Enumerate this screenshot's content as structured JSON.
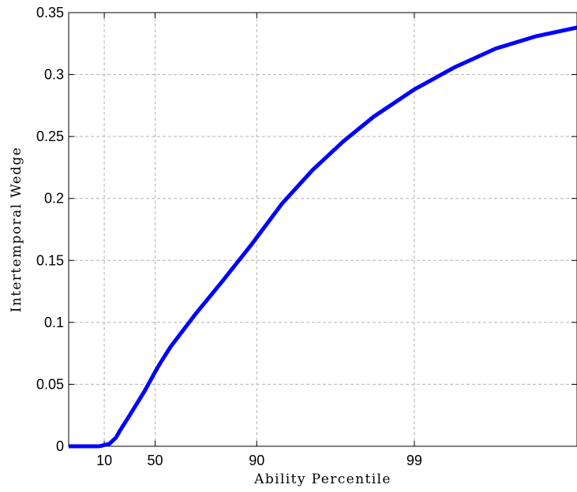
{
  "chart_data": {
    "type": "line",
    "title": "",
    "xlabel": "Ability Percentile",
    "ylabel": "Intertemporal Wedge",
    "x_ticks": [
      {
        "value": 10,
        "label": "10"
      },
      {
        "value": 50,
        "label": "50"
      },
      {
        "value": 90,
        "label": "90"
      },
      {
        "value": 99,
        "label": "99"
      }
    ],
    "y_ticks": [
      {
        "value": 0,
        "label": "0"
      },
      {
        "value": 0.05,
        "label": "0.05"
      },
      {
        "value": 0.1,
        "label": "0.1"
      },
      {
        "value": 0.15,
        "label": "0.15"
      },
      {
        "value": 0.2,
        "label": "0.2"
      },
      {
        "value": 0.25,
        "label": "0.25"
      },
      {
        "value": 0.3,
        "label": "0.3"
      },
      {
        "value": 0.35,
        "label": "0.35"
      }
    ],
    "ylim": [
      0,
      0.35
    ],
    "grid": true,
    "legend": "none",
    "series": [
      {
        "color": "#0000ff",
        "points": [
          {
            "x_position": 0.0,
            "y": 0.0
          },
          {
            "x_position": 0.06,
            "y": 0.0
          },
          {
            "x_position": 0.08,
            "y": 0.002
          },
          {
            "x_position": 0.093,
            "y": 0.007
          },
          {
            "x_position": 0.1,
            "y": 0.012
          },
          {
            "x_position": 0.12,
            "y": 0.025
          },
          {
            "x_position": 0.15,
            "y": 0.045
          },
          {
            "x_position": 0.17,
            "y": 0.06
          },
          {
            "x_position": 0.18,
            "y": 0.067
          },
          {
            "x_position": 0.2,
            "y": 0.08
          },
          {
            "x_position": 0.25,
            "y": 0.107
          },
          {
            "x_position": 0.3,
            "y": 0.132
          },
          {
            "x_position": 0.36,
            "y": 0.163
          },
          {
            "x_position": 0.42,
            "y": 0.196
          },
          {
            "x_position": 0.48,
            "y": 0.223
          },
          {
            "x_position": 0.54,
            "y": 0.246
          },
          {
            "x_position": 0.6,
            "y": 0.266
          },
          {
            "x_position": 0.68,
            "y": 0.288
          },
          {
            "x_position": 0.76,
            "y": 0.306
          },
          {
            "x_position": 0.84,
            "y": 0.321
          },
          {
            "x_position": 0.92,
            "y": 0.331
          },
          {
            "x_position": 1.0,
            "y": 0.338
          }
        ]
      }
    ],
    "x_tick_positions": [
      0.07,
      0.17,
      0.37,
      0.68
    ]
  }
}
